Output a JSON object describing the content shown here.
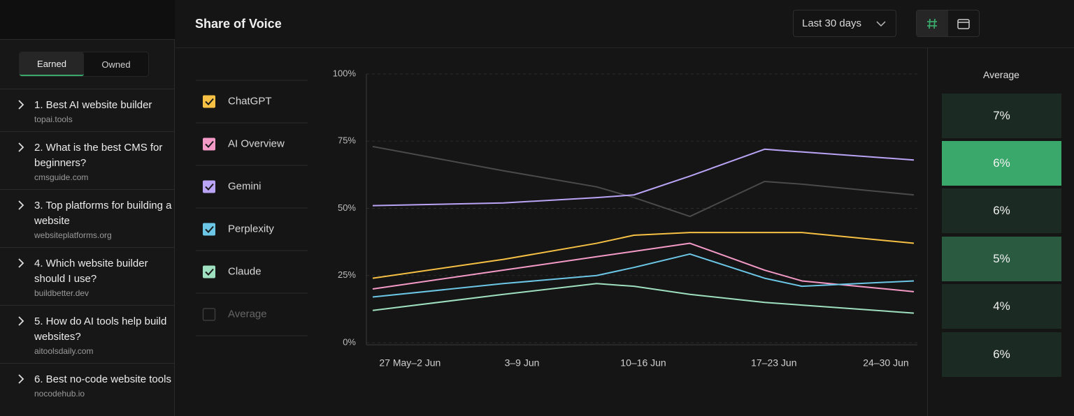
{
  "sidebar": {
    "tabs": [
      "Earned",
      "Owned"
    ],
    "active_tab": 0,
    "items": [
      {
        "title": "1. Best AI website builder",
        "domain": "topai.tools"
      },
      {
        "title": "2. What is the best CMS for beginners?",
        "domain": "cmsguide.com"
      },
      {
        "title": "3. Top platforms for building a website",
        "domain": "websiteplatforms.org"
      },
      {
        "title": "4. Which website builder should I use?",
        "domain": "buildbetter.dev"
      },
      {
        "title": "5. How do AI tools help build websites?",
        "domain": "aitoolsdaily.com"
      },
      {
        "title": "6. Best no-code website tools",
        "domain": "nocodehub.io"
      }
    ]
  },
  "header": {
    "title": "Share of Voice",
    "range": "Last 30 days"
  },
  "chart_data": {
    "type": "line",
    "x": [
      0,
      7,
      12,
      14,
      17,
      21,
      23,
      29
    ],
    "xlim": [
      0,
      29
    ],
    "xticks": [
      {
        "value": 2,
        "label": "27 May–2 Jun"
      },
      {
        "value": 8,
        "label": "3–9 Jun"
      },
      {
        "value": 14.5,
        "label": "10–16 Jun"
      },
      {
        "value": 21.5,
        "label": "17–23 Jun"
      },
      {
        "value": 27.5,
        "label": "24–30 Jun"
      }
    ],
    "ylim": [
      0,
      100
    ],
    "yticks": [
      {
        "value": 0,
        "label": "0%"
      },
      {
        "value": 25,
        "label": "25%"
      },
      {
        "value": 50,
        "label": "50%"
      },
      {
        "value": 75,
        "label": "75%"
      },
      {
        "value": 100,
        "label": "100%"
      }
    ],
    "grid": true,
    "series": [
      {
        "name": "ChatGPT",
        "color": "#f5c044",
        "checked": true,
        "values": [
          24,
          31,
          37,
          40,
          41,
          41,
          41,
          37
        ]
      },
      {
        "name": "AI Overview",
        "color": "#f49ac7",
        "checked": true,
        "values": [
          20,
          27,
          32,
          34,
          37,
          27,
          23,
          19
        ]
      },
      {
        "name": "Gemini",
        "color": "#b9a4f5",
        "checked": true,
        "values": [
          51,
          52,
          54,
          55,
          62,
          72,
          71,
          68
        ]
      },
      {
        "name": "Perplexity",
        "color": "#6cc6e6",
        "checked": true,
        "values": [
          17,
          22,
          25,
          28,
          33,
          24,
          21,
          23
        ]
      },
      {
        "name": "Claude",
        "color": "#9ee0c0",
        "checked": true,
        "values": [
          12,
          18,
          22,
          21,
          18,
          15,
          14,
          11
        ]
      },
      {
        "name": "Average",
        "color": "#4a4a4a",
        "checked": false,
        "values": [
          73,
          64,
          58,
          54,
          47,
          60,
          59,
          55
        ]
      }
    ]
  },
  "average_panel": {
    "title": "Average",
    "tiles": [
      {
        "label": "7%",
        "color": "#1b2a23"
      },
      {
        "label": "6%",
        "color": "#3aa86b"
      },
      {
        "label": "6%",
        "color": "#1b2a23"
      },
      {
        "label": "5%",
        "color": "#2a5a3f"
      },
      {
        "label": "4%",
        "color": "#1b2a23"
      },
      {
        "label": "6%",
        "color": "#1b2a23"
      }
    ]
  }
}
